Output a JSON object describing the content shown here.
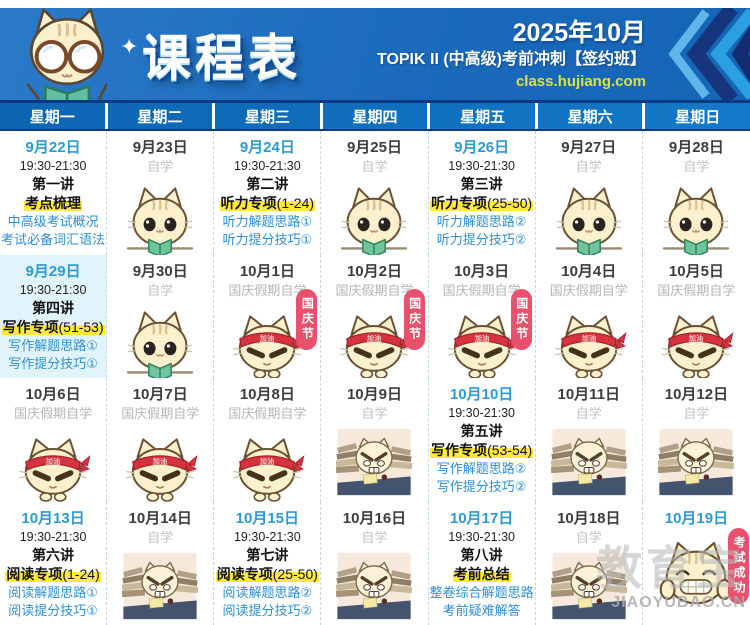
{
  "header": {
    "title": "课程表",
    "month": "2025年10月",
    "subtitle": "TOPIK II (中高级)考前冲刺【签约班】",
    "site": "class.hujiang.com",
    "sparkle": "✦"
  },
  "weekdays": [
    "星期一",
    "星期二",
    "星期三",
    "星期四",
    "星期五",
    "星期六",
    "星期日"
  ],
  "weeks": [
    [
      {
        "date": "9月22日",
        "kind": "class",
        "time": "19:30-21:30",
        "lecture": "第一讲",
        "topic": "考点梳理",
        "topic_suffix": "",
        "details": [
          "中高级考试概况",
          "考试必备词汇语法"
        ]
      },
      {
        "date": "9月23日",
        "kind": "self",
        "label": "自学",
        "cat": "reading"
      },
      {
        "date": "9月24日",
        "kind": "class",
        "time": "19:30-21:30",
        "lecture": "第二讲",
        "topic": "听力专项",
        "topic_suffix": "(1-24)",
        "details": [
          "听力解题思路①",
          "听力提分技巧①"
        ]
      },
      {
        "date": "9月25日",
        "kind": "self",
        "label": "自学",
        "cat": "reading"
      },
      {
        "date": "9月26日",
        "kind": "class",
        "time": "19:30-21:30",
        "lecture": "第三讲",
        "topic": "听力专项",
        "topic_suffix": "(25-50)",
        "details": [
          "听力解题思路②",
          "听力提分技巧②"
        ]
      },
      {
        "date": "9月27日",
        "kind": "self",
        "label": "自学",
        "cat": "reading"
      },
      {
        "date": "9月28日",
        "kind": "self",
        "label": "自学",
        "cat": "reading"
      }
    ],
    [
      {
        "date": "9月29日",
        "kind": "class",
        "time": "19:30-21:30",
        "lecture": "第四讲",
        "topic": "写作专项",
        "topic_suffix": "(51-53)",
        "details": [
          "写作解题思路①",
          "写作提分技巧①"
        ],
        "cell_bg": "#e2f4fb"
      },
      {
        "date": "9月30日",
        "kind": "self",
        "label": "自学",
        "cat": "reading"
      },
      {
        "date": "10月1日",
        "kind": "self",
        "label": "国庆假期自学",
        "cat": "headband",
        "badge": "国庆节"
      },
      {
        "date": "10月2日",
        "kind": "self",
        "label": "国庆假期自学",
        "cat": "headband",
        "badge": "国庆节"
      },
      {
        "date": "10月3日",
        "kind": "self",
        "label": "国庆假期自学",
        "cat": "headband",
        "badge": "国庆节"
      },
      {
        "date": "10月4日",
        "kind": "self",
        "label": "国庆假期自学",
        "cat": "headband"
      },
      {
        "date": "10月5日",
        "kind": "self",
        "label": "国庆假期自学",
        "cat": "headband"
      }
    ],
    [
      {
        "date": "10月6日",
        "kind": "self",
        "label": "国庆假期自学",
        "cat": "headband"
      },
      {
        "date": "10月7日",
        "kind": "self",
        "label": "国庆假期自学",
        "cat": "headband"
      },
      {
        "date": "10月8日",
        "kind": "self",
        "label": "国庆假期自学",
        "cat": "headband"
      },
      {
        "date": "10月9日",
        "kind": "self",
        "label": "自学",
        "cat": "studying"
      },
      {
        "date": "10月10日",
        "kind": "class",
        "time": "19:30-21:30",
        "lecture": "第五讲",
        "topic": "写作专项",
        "topic_suffix": "(53-54)",
        "details": [
          "写作解题思路②",
          "写作提分技巧②"
        ]
      },
      {
        "date": "10月11日",
        "kind": "self",
        "label": "自学",
        "cat": "studying"
      },
      {
        "date": "10月12日",
        "kind": "self",
        "label": "自学",
        "cat": "studying"
      }
    ],
    [
      {
        "date": "10月13日",
        "kind": "class",
        "time": "19:30-21:30",
        "lecture": "第六讲",
        "topic": "阅读专项",
        "topic_suffix": "(1-24)",
        "details": [
          "阅读解题思路①",
          "阅读提分技巧①"
        ]
      },
      {
        "date": "10月14日",
        "kind": "self",
        "label": "自学",
        "cat": "studying"
      },
      {
        "date": "10月15日",
        "kind": "class",
        "time": "19:30-21:30",
        "lecture": "第七讲",
        "topic": "阅读专项",
        "topic_suffix": "(25-50)",
        "details": [
          "阅读解题思路②",
          "阅读提分技巧②"
        ]
      },
      {
        "date": "10月16日",
        "kind": "self",
        "label": "自学",
        "cat": "studying"
      },
      {
        "date": "10月17日",
        "kind": "class",
        "time": "19:30-21:30",
        "lecture": "第八讲",
        "topic": "考前总结",
        "topic_suffix": "",
        "details": [
          "整卷综合解题思路",
          "考前疑难解答"
        ]
      },
      {
        "date": "10月18日",
        "kind": "self",
        "label": "自学",
        "cat": "studying"
      },
      {
        "date": "10月19日",
        "kind": "final",
        "cat": "happy",
        "badge": "考试成功"
      }
    ]
  ],
  "watermark": {
    "brand": "教育宝",
    "domain": "JIAOYUBAO.CN"
  },
  "colors": {
    "banner_blue": "#1b6abc",
    "day_header_blue": "#0d65b2",
    "class_date_blue": "#2a9ad6",
    "detail_blue": "#2e8fd6",
    "highlight_yellow": "#ffe93c",
    "badge_red": "#e8516b",
    "site_yellow": "#dce23a",
    "selected_cell_bg": "#e2f4fb"
  }
}
